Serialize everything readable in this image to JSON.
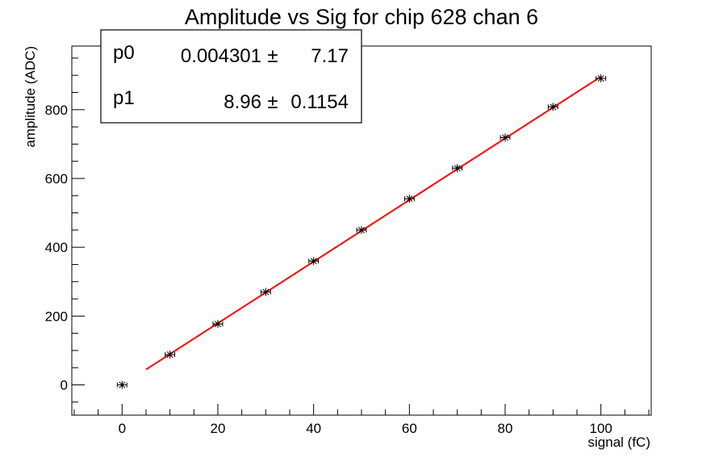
{
  "chart_data": {
    "type": "scatter",
    "title": "Amplitude vs Sig for chip 628 chan 6",
    "xlabel": "signal (fC)",
    "ylabel": "amplitude (ADC)",
    "xlim": [
      -10.5,
      110.5
    ],
    "ylim": [
      -88,
      985
    ],
    "x_ticks": [
      0,
      20,
      40,
      60,
      80,
      100
    ],
    "y_ticks": [
      0,
      200,
      400,
      600,
      800
    ],
    "grid": false,
    "series": [
      {
        "marker": "star-with-error-bars",
        "color": "#000000",
        "x": [
          0,
          10,
          20,
          30,
          40,
          50,
          60,
          70,
          80,
          90,
          100
        ],
        "y": [
          0,
          88,
          177,
          270,
          360,
          450,
          541,
          630,
          719,
          808,
          891
        ],
        "x_err": [
          1,
          1,
          1,
          1,
          1,
          1,
          1,
          1,
          1,
          1,
          1
        ],
        "y_err": [
          7,
          7,
          7,
          7,
          7,
          7,
          7,
          7,
          7,
          7,
          7
        ]
      }
    ],
    "fit": {
      "type": "linear",
      "color": "#ff0000",
      "p0": 0.004301,
      "p1": 8.96,
      "x_range": [
        5,
        100
      ]
    },
    "stats_box": {
      "position": "top-left",
      "rows": [
        {
          "name": "p0",
          "value": "0.004301",
          "pm": "±",
          "error": "7.17"
        },
        {
          "name": "p1",
          "value": "8.96",
          "pm": "±",
          "error": "0.1154"
        }
      ]
    }
  }
}
